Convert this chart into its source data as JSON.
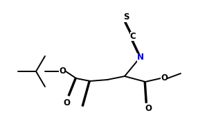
{
  "bg_color": "#ffffff",
  "line_color": "#000000",
  "atom_S": "#000000",
  "atom_C": "#000000",
  "atom_N": "#0000cc",
  "atom_O": "#000000",
  "font_size": 8.5,
  "line_width": 1.4,
  "fig_w": 2.86,
  "fig_h": 1.89,
  "dpi": 100,
  "xlim": [
    0,
    286
  ],
  "ylim": [
    0,
    189
  ]
}
